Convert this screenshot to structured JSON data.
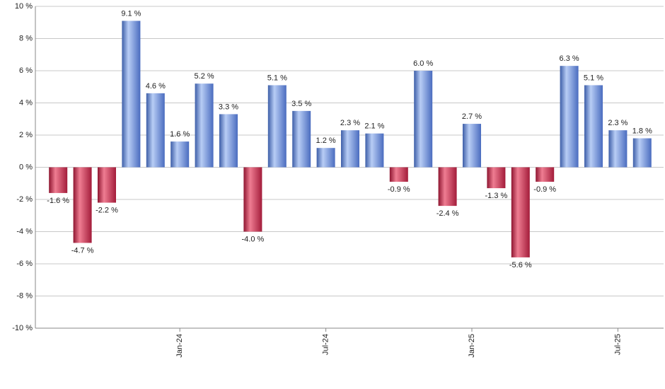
{
  "chart_data": {
    "type": "bar",
    "categories": [
      null,
      null,
      null,
      null,
      null,
      "Jan-24",
      null,
      null,
      null,
      null,
      null,
      "Jul-24",
      null,
      null,
      null,
      null,
      null,
      "Jan-25",
      null,
      null,
      null,
      null,
      null,
      "Jul-25",
      null
    ],
    "values": [
      -1.6,
      -4.7,
      -2.2,
      9.1,
      4.6,
      1.6,
      5.2,
      3.3,
      -4.0,
      5.1,
      3.5,
      1.2,
      2.3,
      2.1,
      -0.9,
      6.0,
      -2.4,
      2.7,
      -1.3,
      -5.6,
      -0.9,
      6.3,
      5.1,
      2.3,
      1.8
    ],
    "value_labels": [
      "-1.6 %",
      "-4.7 %",
      "-2.2 %",
      "9.1 %",
      "4.6 %",
      "1.6 %",
      "5.2 %",
      "3.3 %",
      "-4.0 %",
      "5.1 %",
      "3.5 %",
      "1.2 %",
      "2.3 %",
      "2.1 %",
      "-0.9 %",
      "6.0 %",
      "-2.4 %",
      "2.7 %",
      "-1.3 %",
      "-5.6 %",
      "-0.9 %",
      "6.3 %",
      "5.1 %",
      "2.3 %",
      "1.8 %"
    ],
    "positive_color": "#5f84d2",
    "negative_color": "#c4294a",
    "ylim": [
      -10,
      10
    ],
    "yticks": [
      {
        "value": -10,
        "label": "-10 %"
      },
      {
        "value": -8,
        "label": "-8 %"
      },
      {
        "value": -6,
        "label": "-6 %"
      },
      {
        "value": -4,
        "label": "-4 %"
      },
      {
        "value": -2,
        "label": "-2 %"
      },
      {
        "value": 0,
        "label": "0 %"
      },
      {
        "value": 2,
        "label": "2 %"
      },
      {
        "value": 4,
        "label": "4 %"
      },
      {
        "value": 6,
        "label": "6 %"
      },
      {
        "value": 8,
        "label": "8 %"
      },
      {
        "value": 10,
        "label": "10 %"
      }
    ],
    "grid": true
  }
}
